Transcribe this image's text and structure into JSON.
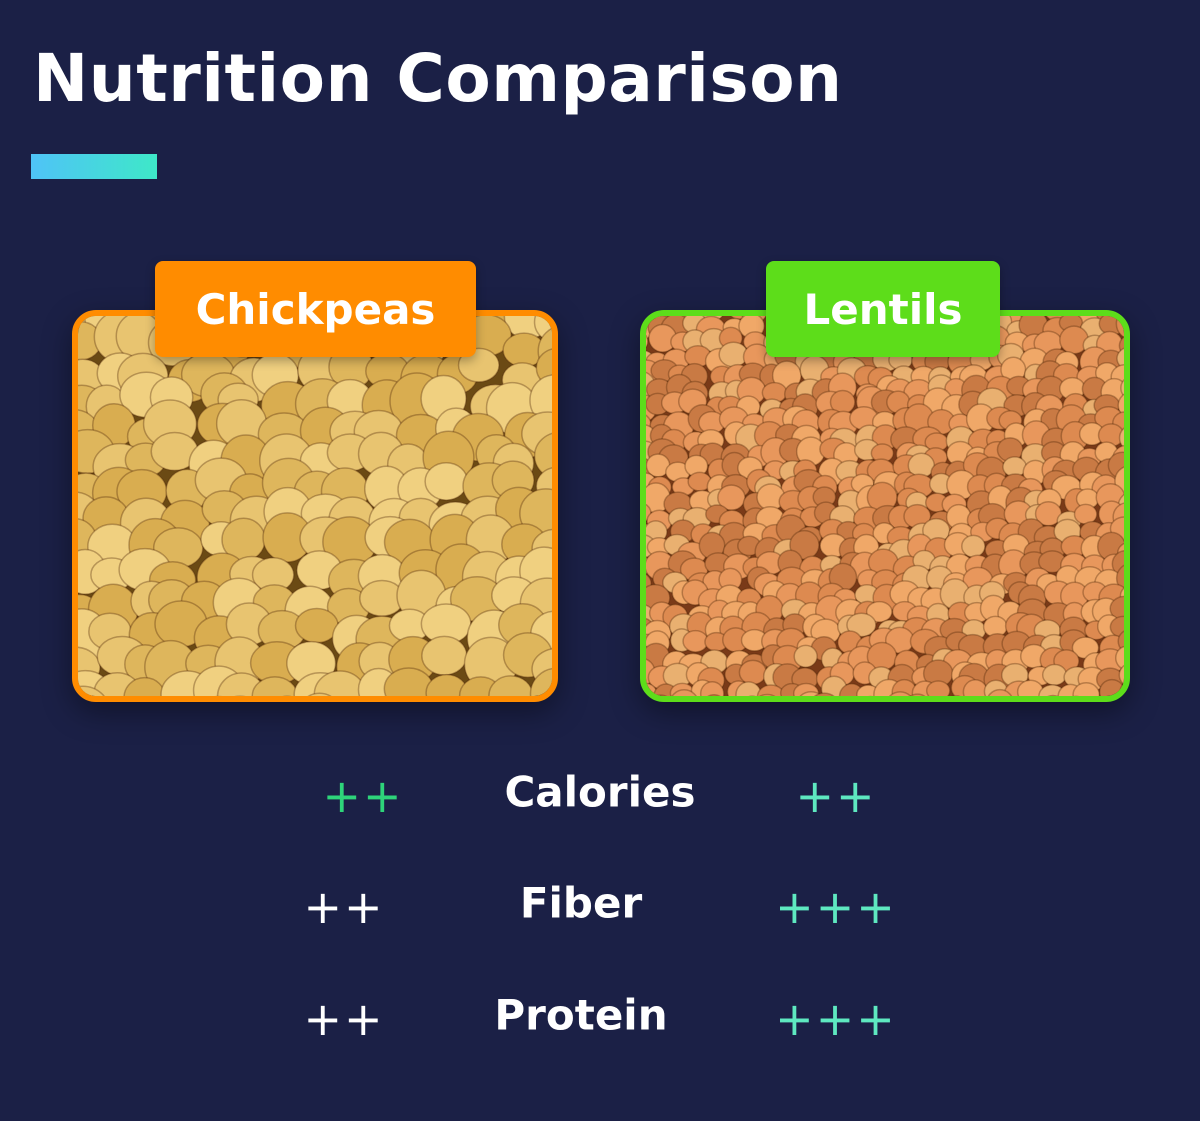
{
  "title": "Nutrition Comparison",
  "foods": [
    {
      "name": "Chickpeas",
      "color": "#ff8c00"
    },
    {
      "name": "Lentils",
      "color": "#5ddd1a"
    }
  ],
  "rows": [
    {
      "label": "Calories",
      "left": "++",
      "left_color": "#2ed47a",
      "right": "++",
      "right_color": "#5ee8c0"
    },
    {
      "label": "Fiber",
      "left": "++",
      "left_color": "#ffffff",
      "right": "+++",
      "right_color": "#5ee8c0"
    },
    {
      "label": "Protein",
      "left": "++",
      "left_color": "#ffffff",
      "right": "+++",
      "right_color": "#5ee8c0"
    }
  ]
}
